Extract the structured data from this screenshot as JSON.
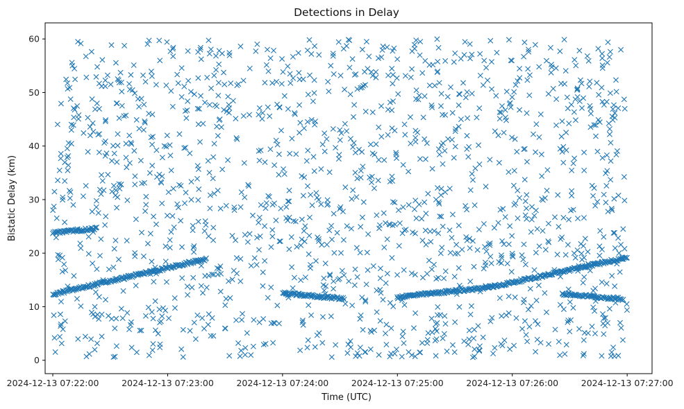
{
  "chart_data": {
    "type": "scatter",
    "title": "Detections in Delay",
    "xlabel": "Time (UTC)",
    "ylabel": "Bistatic Delay (km)",
    "x_ticks": [
      "2024-12-13 07:22:00",
      "2024-12-13 07:23:00",
      "2024-12-13 07:24:00",
      "2024-12-13 07:25:00",
      "2024-12-13 07:26:00",
      "2024-12-13 07:27:00"
    ],
    "y_ticks": [
      "0",
      "10",
      "20",
      "30",
      "40",
      "50",
      "60"
    ],
    "xlim": [
      "2024-12-13 07:21:56",
      "2024-12-13 07:27:13"
    ],
    "ylim": [
      -2.5,
      63
    ],
    "grid": false,
    "marker": "x",
    "color": "#1f77b4",
    "series": [
      {
        "tracks": [
          {
            "start": "2024-12-13 07:22:00",
            "end": "2024-12-13 07:22:15",
            "delay_start": 23.8,
            "delay_end": 24.3
          },
          {
            "start": "2024-12-13 07:22:15",
            "end": "2024-12-13 07:22:23",
            "delay_start": 24.3,
            "delay_end": 24.6
          },
          {
            "start": "2024-12-13 07:22:00",
            "end": "2024-12-13 07:23:20",
            "delay_start": 12.3,
            "delay_end": 18.9
          },
          {
            "start": "2024-12-13 07:24:00",
            "end": "2024-12-13 07:24:32",
            "delay_start": 12.5,
            "delay_end": 11.5
          },
          {
            "start": "2024-12-13 07:25:00",
            "end": "2024-12-13 07:25:48",
            "delay_start": 11.8,
            "delay_end": 13.6
          },
          {
            "start": "2024-12-13 07:25:48",
            "end": "2024-12-13 07:27:00",
            "delay_start": 13.6,
            "delay_end": 19.2
          },
          {
            "start": "2024-12-13 07:26:26",
            "end": "2024-12-13 07:26:58",
            "delay_start": 12.4,
            "delay_end": 11.4
          }
        ],
        "noise": {
          "start": "2024-12-13 07:22:00",
          "end": "2024-12-13 07:27:00",
          "delay_min": 0.5,
          "delay_max": 60,
          "count": 1500
        }
      }
    ]
  }
}
